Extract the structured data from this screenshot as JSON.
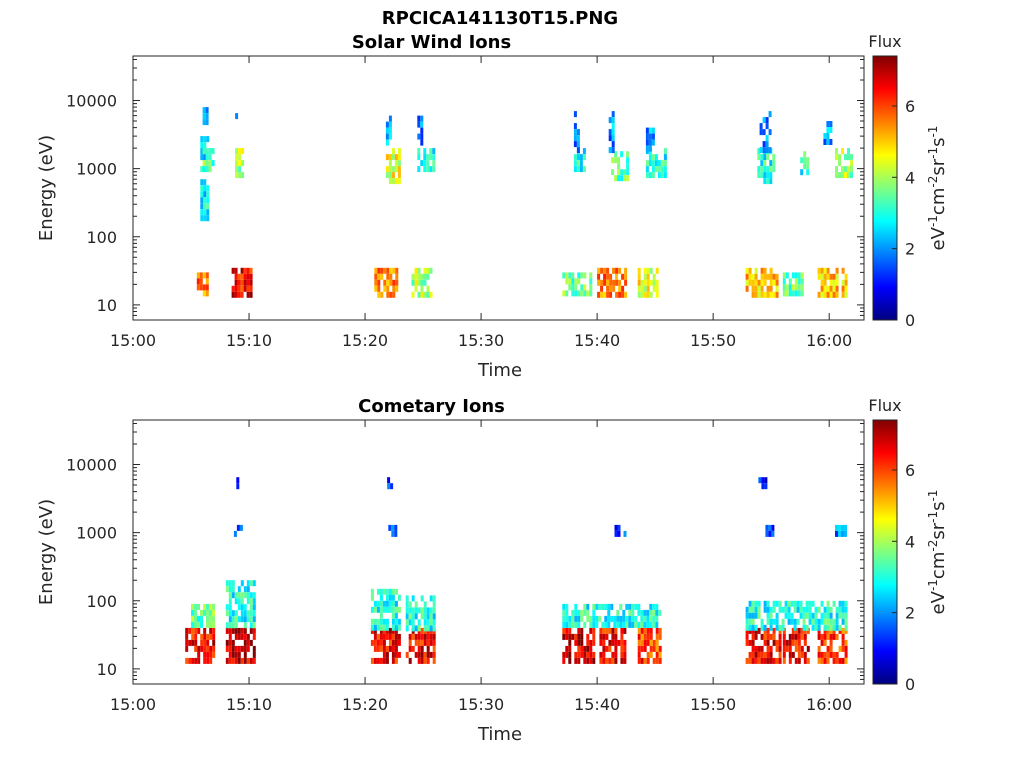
{
  "figure_title": "RPCICA141130T15.PNG",
  "colors": {
    "colormap": [
      "#00007f",
      "#0000ff",
      "#007fff",
      "#00ffff",
      "#7fff7f",
      "#ffff00",
      "#ff7f00",
      "#ff0000",
      "#7f0000"
    ],
    "axis": "#262626",
    "background": "#ffffff"
  },
  "chart_data": [
    {
      "type": "heatmap",
      "title": "Solar Wind Ions",
      "xlabel": "Time",
      "ylabel": "Energy (eV)",
      "y_scale": "log",
      "x_range_minutes_after_15_00": [
        0,
        63
      ],
      "ylim": [
        6,
        45000
      ],
      "x_ticks": [
        "15:00",
        "15:10",
        "15:20",
        "15:30",
        "15:40",
        "15:50",
        "16:00"
      ],
      "y_ticks": [
        "10",
        "100",
        "1000",
        "10000"
      ],
      "colorbar": {
        "title": "Flux",
        "label_parts": [
          "eV",
          "-1",
          "cm",
          "-2",
          "sr",
          "-1",
          "s",
          "-1"
        ],
        "range": [
          0,
          7.4
        ],
        "ticks": [
          "0",
          "2",
          "4",
          "6"
        ]
      },
      "blocks": [
        {
          "t": [
            5.5,
            6.5
          ],
          "e": [
            15,
            30
          ],
          "f": 5.5
        },
        {
          "t": [
            8.5,
            10.3
          ],
          "e": [
            15,
            35
          ],
          "f": 6.5
        },
        {
          "t": [
            5.8,
            6.4
          ],
          "e": [
            200,
            700
          ],
          "f": 2.8
        },
        {
          "t": [
            5.8,
            6.4
          ],
          "e": [
            1000,
            3000
          ],
          "f": 2.5
        },
        {
          "t": [
            6.0,
            6.9
          ],
          "e": [
            900,
            2000
          ],
          "f": 3.5
        },
        {
          "t": [
            8.8,
            9.5
          ],
          "e": [
            800,
            2000
          ],
          "f": 4.0
        },
        {
          "t": [
            6.0,
            6.3
          ],
          "e": [
            5000,
            8000
          ],
          "f": 2.0
        },
        {
          "t": [
            8.8,
            9.0
          ],
          "e": [
            5000,
            8000
          ],
          "f": 1.5
        },
        {
          "t": [
            20.8,
            22.8
          ],
          "e": [
            15,
            35
          ],
          "f": 5.5
        },
        {
          "t": [
            24.0,
            25.8
          ],
          "e": [
            15,
            35
          ],
          "f": 4.0
        },
        {
          "t": [
            21.8,
            23.0
          ],
          "e": [
            700,
            2000
          ],
          "f": 4.5
        },
        {
          "t": [
            21.8,
            22.3
          ],
          "e": [
            2500,
            6000
          ],
          "f": 2.0
        },
        {
          "t": [
            24.5,
            25.8
          ],
          "e": [
            1000,
            2000
          ],
          "f": 3.0
        },
        {
          "t": [
            24.5,
            25.0
          ],
          "e": [
            2500,
            6000
          ],
          "f": 2.0
        },
        {
          "t": [
            37.0,
            39.5
          ],
          "e": [
            15,
            30
          ],
          "f": 3.5
        },
        {
          "t": [
            40.0,
            42.5
          ],
          "e": [
            15,
            35
          ],
          "f": 5.5
        },
        {
          "t": [
            43.5,
            45.3
          ],
          "e": [
            15,
            35
          ],
          "f": 4.5
        },
        {
          "t": [
            38.0,
            38.8
          ],
          "e": [
            900,
            2000
          ],
          "f": 3.0
        },
        {
          "t": [
            41.2,
            42.5
          ],
          "e": [
            700,
            1800
          ],
          "f": 3.5
        },
        {
          "t": [
            44.2,
            45.8
          ],
          "e": [
            800,
            2000
          ],
          "f": 3.0
        },
        {
          "t": [
            38.0,
            38.5
          ],
          "e": [
            2000,
            7000
          ],
          "f": 2.0
        },
        {
          "t": [
            41.0,
            41.5
          ],
          "e": [
            2000,
            7000
          ],
          "f": 2.0
        },
        {
          "t": [
            44.2,
            44.8
          ],
          "e": [
            2000,
            4000
          ],
          "f": 2.0
        },
        {
          "t": [
            52.8,
            55.5
          ],
          "e": [
            15,
            35
          ],
          "f": 5.0
        },
        {
          "t": [
            56.0,
            57.8
          ],
          "e": [
            15,
            30
          ],
          "f": 3.5
        },
        {
          "t": [
            59.0,
            61.5
          ],
          "e": [
            15,
            35
          ],
          "f": 5.0
        },
        {
          "t": [
            53.8,
            55.3
          ],
          "e": [
            700,
            2000
          ],
          "f": 3.0
        },
        {
          "t": [
            54.0,
            55.0
          ],
          "e": [
            2000,
            7000
          ],
          "f": 2.0
        },
        {
          "t": [
            57.5,
            58.2
          ],
          "e": [
            900,
            1800
          ],
          "f": 3.0
        },
        {
          "t": [
            59.5,
            60.2
          ],
          "e": [
            2500,
            5000
          ],
          "f": 2.0
        },
        {
          "t": [
            60.5,
            61.8
          ],
          "e": [
            800,
            2000
          ],
          "f": 4.0
        }
      ]
    },
    {
      "type": "heatmap",
      "title": "Cometary Ions",
      "xlabel": "Time",
      "ylabel": "Energy (eV)",
      "y_scale": "log",
      "x_range_minutes_after_15_00": [
        0,
        63
      ],
      "ylim": [
        6,
        45000
      ],
      "x_ticks": [
        "15:00",
        "15:10",
        "15:20",
        "15:30",
        "15:40",
        "15:50",
        "16:00"
      ],
      "y_ticks": [
        "10",
        "100",
        "1000",
        "10000"
      ],
      "colorbar": {
        "title": "Flux",
        "label_parts": [
          "eV",
          "-1",
          "cm",
          "-2",
          "sr",
          "-1",
          "s",
          "-1"
        ],
        "range": [
          0,
          7.4
        ],
        "ticks": [
          "0",
          "2",
          "4",
          "6"
        ]
      },
      "blocks": [
        {
          "t": [
            4.5,
            7.0
          ],
          "e": [
            13,
            40
          ],
          "f": 6.5
        },
        {
          "t": [
            8.0,
            10.5
          ],
          "e": [
            13,
            40
          ],
          "f": 6.8
        },
        {
          "t": [
            5.0,
            7.0
          ],
          "e": [
            40,
            90
          ],
          "f": 3.5
        },
        {
          "t": [
            8.0,
            10.5
          ],
          "e": [
            40,
            200
          ],
          "f": 3.0
        },
        {
          "t": [
            8.7,
            9.3
          ],
          "e": [
            900,
            1300
          ],
          "f": 1.5
        },
        {
          "t": [
            8.9,
            9.1
          ],
          "e": [
            5000,
            6500
          ],
          "f": 1.0
        },
        {
          "t": [
            20.5,
            23.0
          ],
          "e": [
            13,
            40
          ],
          "f": 6.5
        },
        {
          "t": [
            23.5,
            26.0
          ],
          "e": [
            13,
            40
          ],
          "f": 6.5
        },
        {
          "t": [
            20.5,
            23.0
          ],
          "e": [
            40,
            150
          ],
          "f": 3.0
        },
        {
          "t": [
            23.5,
            26.0
          ],
          "e": [
            40,
            120
          ],
          "f": 3.0
        },
        {
          "t": [
            22.0,
            22.6
          ],
          "e": [
            900,
            1300
          ],
          "f": 1.5
        },
        {
          "t": [
            21.9,
            22.4
          ],
          "e": [
            5000,
            6500
          ],
          "f": 1.2
        },
        {
          "t": [
            37.0,
            39.8
          ],
          "e": [
            13,
            40
          ],
          "f": 6.8
        },
        {
          "t": [
            40.2,
            42.5
          ],
          "e": [
            13,
            40
          ],
          "f": 6.5
        },
        {
          "t": [
            43.5,
            45.5
          ],
          "e": [
            13,
            40
          ],
          "f": 6.0
        },
        {
          "t": [
            37.0,
            45.5
          ],
          "e": [
            40,
            90
          ],
          "f": 3.0
        },
        {
          "t": [
            41.5,
            42.5
          ],
          "e": [
            900,
            1300
          ],
          "f": 1.5
        },
        {
          "t": [
            52.8,
            55.8
          ],
          "e": [
            13,
            40
          ],
          "f": 6.5
        },
        {
          "t": [
            56.0,
            58.2
          ],
          "e": [
            13,
            40
          ],
          "f": 6.5
        },
        {
          "t": [
            59.0,
            61.5
          ],
          "e": [
            13,
            40
          ],
          "f": 6.0
        },
        {
          "t": [
            52.8,
            61.5
          ],
          "e": [
            40,
            100
          ],
          "f": 3.0
        },
        {
          "t": [
            54.5,
            55.2
          ],
          "e": [
            900,
            1300
          ],
          "f": 1.5
        },
        {
          "t": [
            60.5,
            61.5
          ],
          "e": [
            900,
            1300
          ],
          "f": 2.0
        },
        {
          "t": [
            53.9,
            54.6
          ],
          "e": [
            5000,
            6500
          ],
          "f": 1.2
        }
      ]
    }
  ]
}
